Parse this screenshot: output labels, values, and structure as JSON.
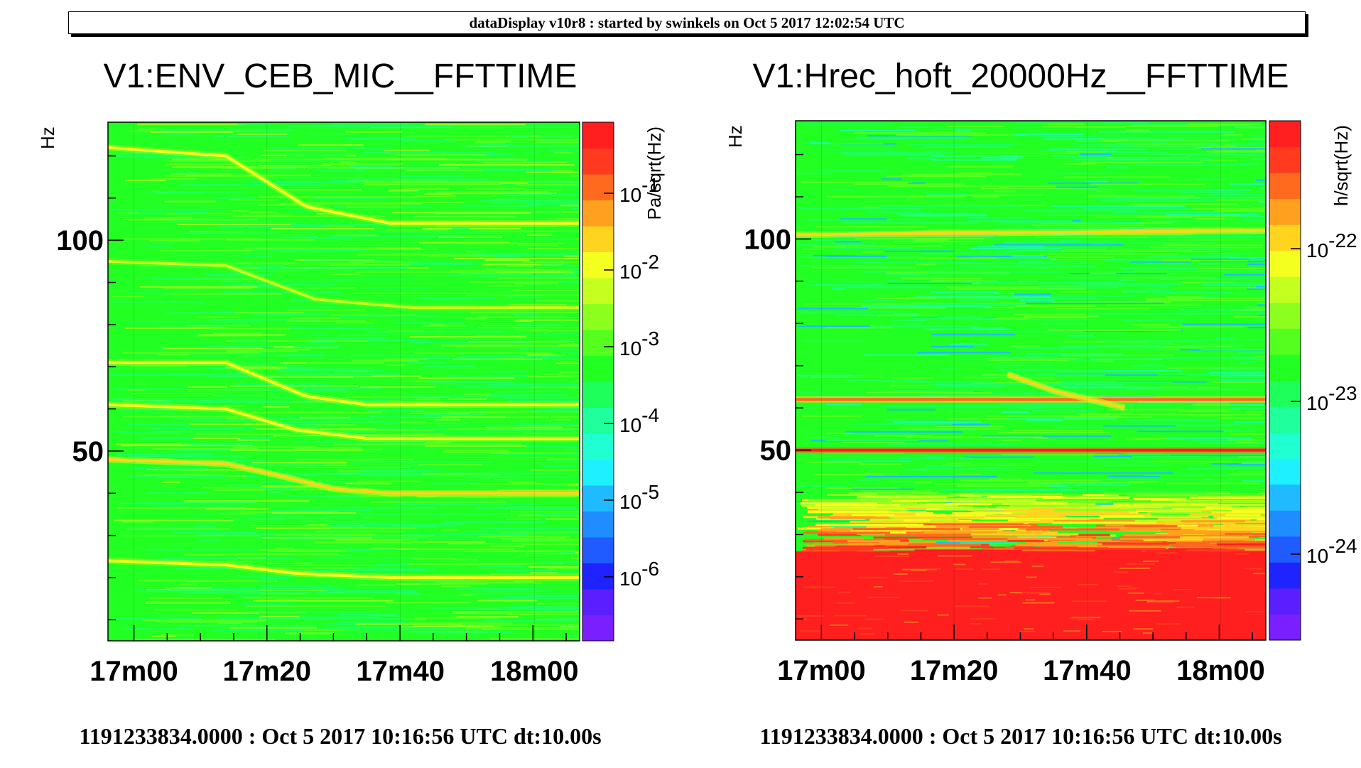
{
  "header": {
    "text": "dataDisplay v10r8 : started by swinkels on Oct  5 2017 12:02:54 UTC"
  },
  "palette": [
    "#7a1fff",
    "#5b1fff",
    "#1f24ff",
    "#1f5bff",
    "#1f8cff",
    "#1fbaff",
    "#1ff0ff",
    "#1fffd2",
    "#1fff9b",
    "#1fff5c",
    "#22ff22",
    "#54ff1f",
    "#8cff1f",
    "#c4ff1f",
    "#f5ff1f",
    "#ffd41f",
    "#ffa01f",
    "#ff6a1f",
    "#ff3a1f",
    "#ff1f1f"
  ],
  "chart_data": [
    {
      "type": "heatmap",
      "title": "V1:ENV_CEB_MIC__FFTTIME",
      "ylabel": "Hz",
      "colorbar_label": "Pa/sqrt(Hz)",
      "colorbar_scale": "log",
      "colorbar_ticks": [
        {
          "base": "10",
          "exp": "-1"
        },
        {
          "base": "10",
          "exp": "-2"
        },
        {
          "base": "10",
          "exp": "-3"
        },
        {
          "base": "10",
          "exp": "-4"
        },
        {
          "base": "10",
          "exp": "-5"
        },
        {
          "base": "10",
          "exp": "-6"
        }
      ],
      "x_tick_labels": [
        "17m00",
        "17m20",
        "17m40",
        "18m00"
      ],
      "y_tick_labels": [
        "100",
        "50"
      ],
      "ylim": [
        5,
        128
      ],
      "background_level": 10,
      "lines": [
        {
          "points": [
            [
              0.0,
              122
            ],
            [
              0.25,
              120
            ],
            [
              0.42,
              108
            ],
            [
              0.6,
              104
            ],
            [
              1.0,
              104
            ]
          ],
          "level": 14
        },
        {
          "points": [
            [
              0.0,
              95
            ],
            [
              0.25,
              94
            ],
            [
              0.44,
              86
            ],
            [
              0.65,
              84
            ],
            [
              1.0,
              84
            ]
          ],
          "level": 13
        },
        {
          "points": [
            [
              0.0,
              71
            ],
            [
              0.25,
              71
            ],
            [
              0.42,
              63
            ],
            [
              0.55,
              61
            ],
            [
              0.75,
              61
            ],
            [
              1.0,
              61
            ]
          ],
          "level": 14
        },
        {
          "points": [
            [
              0.0,
              61
            ],
            [
              0.25,
              60
            ],
            [
              0.4,
              55
            ],
            [
              0.55,
              53
            ],
            [
              1.0,
              53
            ]
          ],
          "level": 14
        },
        {
          "points": [
            [
              0.0,
              48
            ],
            [
              0.25,
              47
            ],
            [
              0.37,
              44
            ],
            [
              0.48,
              41
            ],
            [
              0.6,
              40
            ],
            [
              1.0,
              40
            ]
          ],
          "level": 15
        },
        {
          "points": [
            [
              0.0,
              24
            ],
            [
              0.25,
              23
            ],
            [
              0.4,
              21
            ],
            [
              0.6,
              20
            ],
            [
              1.0,
              20
            ]
          ],
          "level": 14
        }
      ]
    },
    {
      "type": "heatmap",
      "title": "V1:Hrec_hoft_20000Hz__FFTTIME",
      "ylabel": "Hz",
      "colorbar_label": "h/sqrt(Hz)",
      "colorbar_scale": "log",
      "colorbar_ticks": [
        {
          "base": "10",
          "exp": "-22"
        },
        {
          "base": "10",
          "exp": "-23"
        },
        {
          "base": "10",
          "exp": "-24"
        }
      ],
      "x_tick_labels": [
        "17m00",
        "17m20",
        "17m40",
        "18m00"
      ],
      "y_tick_labels": [
        "100",
        "50"
      ],
      "ylim": [
        5,
        128
      ],
      "background_level": 10,
      "lines": [
        {
          "points": [
            [
              0.0,
              101
            ],
            [
              1.0,
              102
            ]
          ],
          "level": 15
        },
        {
          "points": [
            [
              0.0,
              62
            ],
            [
              1.0,
              62
            ]
          ],
          "level": 17
        },
        {
          "points": [
            [
              0.0,
              50
            ],
            [
              1.0,
              50
            ]
          ],
          "level": 19
        },
        {
          "points": [
            [
              0.45,
              68
            ],
            [
              0.55,
              64
            ],
            [
              0.7,
              60
            ]
          ],
          "level": 15
        }
      ],
      "low_freq_band": {
        "from": 5,
        "to": 26,
        "level": 19,
        "transition_to": 40
      }
    }
  ],
  "footers": [
    "1191233834.0000 : Oct  5 2017 10:16:56 UTC dt:10.00s",
    "1191233834.0000 : Oct  5 2017 10:16:56 UTC dt:10.00s"
  ]
}
